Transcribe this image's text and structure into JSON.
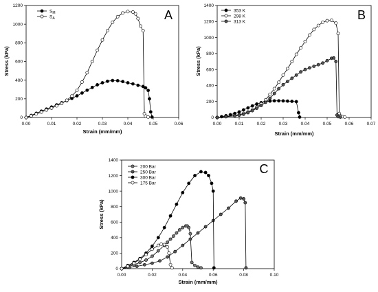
{
  "chart_data": [
    {
      "panel": "A",
      "type": "scatter",
      "xlabel": "Strain (mm/mm)",
      "ylabel": "Stress (kPa)",
      "xlim": [
        0,
        0.06
      ],
      "ylim": [
        0,
        1200
      ],
      "xticks": [
        "0.00",
        "0.01",
        "0.02",
        "0.03",
        "0.04",
        "0.05",
        "0.06"
      ],
      "yticks": [
        "0",
        "200",
        "400",
        "600",
        "800",
        "1000",
        "1200"
      ],
      "legend_position": "top-left",
      "series": [
        {
          "name": "S_M",
          "label_main": "S",
          "label_sub": "M",
          "marker": "filled",
          "color": "#000000",
          "x": [
            0,
            0.002,
            0.004,
            0.006,
            0.008,
            0.01,
            0.012,
            0.014,
            0.016,
            0.018,
            0.02,
            0.022,
            0.024,
            0.026,
            0.028,
            0.03,
            0.032,
            0.034,
            0.036,
            0.038,
            0.04,
            0.042,
            0.044,
            0.046,
            0.047,
            0.048,
            0.0485,
            0.049,
            0.0495
          ],
          "y": [
            0,
            22,
            45,
            68,
            90,
            112,
            135,
            158,
            180,
            205,
            232,
            262,
            292,
            322,
            350,
            372,
            388,
            396,
            394,
            385,
            372,
            360,
            345,
            332,
            318,
            290,
            200,
            60,
            5
          ]
        },
        {
          "name": "S_A",
          "label_main": "S",
          "label_sub": "A",
          "marker": "open",
          "color": "#000000",
          "x": [
            0,
            0.002,
            0.004,
            0.006,
            0.008,
            0.01,
            0.012,
            0.014,
            0.016,
            0.018,
            0.02,
            0.022,
            0.024,
            0.026,
            0.028,
            0.03,
            0.032,
            0.034,
            0.036,
            0.038,
            0.04,
            0.042,
            0.043,
            0.044,
            0.045,
            0.046,
            0.0465,
            0.047,
            0.048
          ],
          "y": [
            0,
            18,
            38,
            58,
            80,
            100,
            125,
            150,
            185,
            230,
            290,
            380,
            480,
            600,
            720,
            830,
            930,
            1020,
            1080,
            1120,
            1135,
            1130,
            1110,
            1060,
            980,
            930,
            40,
            15,
            5
          ]
        }
      ]
    },
    {
      "panel": "B",
      "type": "scatter",
      "xlabel": "Strain (mm/mm)",
      "ylabel": "Stress (kPa)",
      "xlim": [
        0,
        0.07
      ],
      "ylim": [
        0,
        1400
      ],
      "xticks": [
        "0.00",
        "0.01",
        "0.02",
        "0.03",
        "0.04",
        "0.05",
        "0.06",
        "0.07"
      ],
      "yticks": [
        "0",
        "200",
        "400",
        "600",
        "800",
        "1000",
        "1200",
        "1400"
      ],
      "legend_position": "top-left",
      "series": [
        {
          "name": "353 K",
          "marker": "filled",
          "color": "#000000",
          "x": [
            0,
            0.002,
            0.004,
            0.006,
            0.008,
            0.01,
            0.012,
            0.014,
            0.016,
            0.018,
            0.02,
            0.022,
            0.024,
            0.026,
            0.028,
            0.03,
            0.032,
            0.034,
            0.036,
            0.037,
            0.0375
          ],
          "y": [
            0,
            10,
            22,
            35,
            50,
            70,
            95,
            120,
            145,
            168,
            185,
            198,
            205,
            208,
            208,
            207,
            205,
            202,
            198,
            60,
            5
          ]
        },
        {
          "name": "298 K",
          "marker": "open",
          "color": "#000000",
          "x": [
            0,
            0.004,
            0.008,
            0.01,
            0.012,
            0.014,
            0.016,
            0.018,
            0.02,
            0.022,
            0.024,
            0.026,
            0.028,
            0.03,
            0.032,
            0.034,
            0.036,
            0.038,
            0.04,
            0.042,
            0.044,
            0.046,
            0.048,
            0.05,
            0.052,
            0.054,
            0.055,
            0.0555,
            0.056,
            0.057,
            0.058
          ],
          "y": [
            0,
            10,
            25,
            35,
            50,
            70,
            95,
            130,
            170,
            220,
            290,
            360,
            440,
            530,
            610,
            700,
            790,
            870,
            950,
            1030,
            1100,
            1150,
            1190,
            1210,
            1215,
            1180,
            1050,
            50,
            20,
            10,
            5
          ]
        },
        {
          "name": "313 K",
          "marker": "gray",
          "color": "#555555",
          "x": [
            0,
            0.004,
            0.008,
            0.01,
            0.012,
            0.014,
            0.016,
            0.018,
            0.02,
            0.022,
            0.024,
            0.026,
            0.028,
            0.03,
            0.032,
            0.034,
            0.036,
            0.038,
            0.04,
            0.042,
            0.044,
            0.046,
            0.048,
            0.05,
            0.052,
            0.053,
            0.054,
            0.0545,
            0.055,
            0.056
          ],
          "y": [
            0,
            10,
            20,
            28,
            40,
            60,
            85,
            115,
            150,
            190,
            240,
            300,
            360,
            410,
            450,
            490,
            530,
            570,
            600,
            620,
            640,
            660,
            680,
            710,
            740,
            745,
            700,
            30,
            10,
            5
          ]
        }
      ]
    },
    {
      "panel": "C",
      "type": "scatter",
      "xlabel": "Strain (mm/mm)",
      "ylabel": "Stress (kPa)",
      "xlim": [
        0,
        0.1
      ],
      "ylim": [
        0,
        1400
      ],
      "xticks": [
        "0.00",
        "0.02",
        "0.04",
        "0.06",
        "0.08",
        "0.10"
      ],
      "yticks": [
        "0",
        "200",
        "400",
        "600",
        "800",
        "1000",
        "1200",
        "1400"
      ],
      "legend_position": "top-left",
      "series": [
        {
          "name": "200 Bar",
          "marker": "gray",
          "color": "#777777",
          "x": [
            0,
            0.004,
            0.008,
            0.012,
            0.016,
            0.02,
            0.024,
            0.028,
            0.03,
            0.032,
            0.034,
            0.036,
            0.038,
            0.04,
            0.042,
            0.043,
            0.044,
            0.045,
            0.046,
            0.048,
            0.05,
            0.052
          ],
          "y": [
            0,
            25,
            50,
            80,
            110,
            160,
            230,
            300,
            340,
            380,
            420,
            460,
            500,
            530,
            550,
            550,
            530,
            450,
            80,
            40,
            20,
            10
          ]
        },
        {
          "name": "250 Bar",
          "marker": "gray",
          "color": "#555555",
          "x": [
            0,
            0.005,
            0.01,
            0.015,
            0.02,
            0.025,
            0.03,
            0.035,
            0.04,
            0.045,
            0.05,
            0.055,
            0.06,
            0.065,
            0.07,
            0.075,
            0.078,
            0.08,
            0.081,
            0.0815
          ],
          "y": [
            0,
            15,
            30,
            50,
            70,
            100,
            150,
            220,
            300,
            380,
            460,
            540,
            620,
            700,
            780,
            870,
            910,
            900,
            850,
            10
          ]
        },
        {
          "name": "300 Bar",
          "marker": "filled",
          "color": "#000000",
          "x": [
            0,
            0.004,
            0.008,
            0.012,
            0.016,
            0.02,
            0.024,
            0.028,
            0.032,
            0.036,
            0.04,
            0.044,
            0.048,
            0.052,
            0.055,
            0.057,
            0.059,
            0.06,
            0.0605
          ],
          "y": [
            0,
            40,
            80,
            130,
            200,
            290,
            400,
            530,
            680,
            830,
            980,
            1100,
            1200,
            1250,
            1240,
            1200,
            1100,
            1000,
            10
          ]
        },
        {
          "name": "175 Bar",
          "marker": "open",
          "color": "#000000",
          "x": [
            0,
            0.004,
            0.008,
            0.012,
            0.016,
            0.02,
            0.024,
            0.026,
            0.028,
            0.03,
            0.031,
            0.032,
            0.033
          ],
          "y": [
            0,
            30,
            70,
            120,
            180,
            250,
            300,
            315,
            310,
            280,
            200,
            50,
            10
          ]
        }
      ]
    }
  ]
}
